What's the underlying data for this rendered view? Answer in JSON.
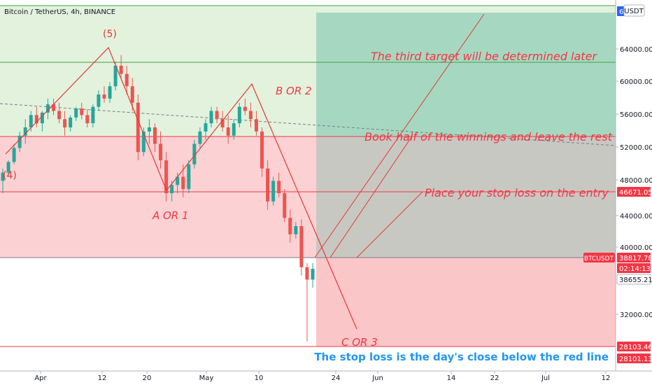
{
  "header": {
    "title": "Bitcoin / TetherUS, 4h, BINANCE",
    "currency_badge": "USDT"
  },
  "chart_data": {
    "type": "candlestick",
    "symbol": "Bitcoin / TetherUS",
    "interval": "4h",
    "exchange": "BINANCE",
    "x_ticks": [
      "Apr",
      "12",
      "20",
      "May",
      "10",
      "24",
      "Jun",
      "14",
      "22",
      "Jul",
      "12"
    ],
    "y_ticks": [
      "64000.00",
      "60000.00",
      "56000.00",
      "52000.00",
      "48000.00",
      "44000.00",
      "40000.00",
      "32000.00"
    ],
    "price_labels": [
      {
        "id": "top",
        "value": "6",
        "bg": "#2962ff",
        "fg": "#ffffff"
      },
      {
        "id": "stop-entry",
        "value": "46671.05",
        "bg": "#f23645",
        "fg": "#ffffff"
      },
      {
        "id": "symbol",
        "value": "BTCUSDT",
        "bg": "#f23645",
        "fg": "#ffffff"
      },
      {
        "id": "last",
        "value": "38817.78",
        "bg": "#f23645",
        "fg": "#ffffff"
      },
      {
        "id": "countdown",
        "value": "02:14:13",
        "bg": "#f23645",
        "fg": "#ffffff"
      },
      {
        "id": "cursor",
        "value": "38655.21",
        "bg": "#ffffff",
        "fg": "#131722"
      },
      {
        "id": "red-line",
        "value": "28103.46",
        "bg": "#f23645",
        "fg": "#ffffff"
      },
      {
        "id": "low-line",
        "value": "28101.13",
        "bg": "#f23645",
        "fg": "#ffffff"
      }
    ],
    "wave_labels": [
      "(5)",
      "(4)",
      "A OR 1",
      "B OR 2",
      "C OR 3"
    ],
    "annotations": [
      "The third target will be determined later",
      "Book half of the winnings and leave the rest",
      "Place your stop loss on the entry",
      "The stop loss is the day's close below the red line"
    ],
    "candles_approx": [
      [
        49500,
        51000,
        48000,
        50500
      ],
      [
        50500,
        52000,
        50000,
        51800
      ],
      [
        51800,
        54000,
        51500,
        53500
      ],
      [
        53500,
        55500,
        53000,
        55000
      ],
      [
        55000,
        57000,
        54000,
        56000
      ],
      [
        56000,
        58000,
        55500,
        57500
      ],
      [
        57500,
        58500,
        56000,
        56500
      ],
      [
        56500,
        58000,
        55500,
        57800
      ],
      [
        57800,
        59500,
        57000,
        58800
      ],
      [
        58800,
        59500,
        57500,
        58000
      ],
      [
        58000,
        59000,
        56500,
        57000
      ],
      [
        57000,
        58000,
        55000,
        56000
      ],
      [
        56000,
        57500,
        55500,
        57200
      ],
      [
        57200,
        58500,
        56800,
        58300
      ],
      [
        58300,
        59000,
        57000,
        57500
      ],
      [
        57500,
        58200,
        56000,
        56500
      ],
      [
        56500,
        58800,
        56000,
        58500
      ],
      [
        58500,
        60500,
        58000,
        60000
      ],
      [
        60000,
        61000,
        59000,
        59500
      ],
      [
        59500,
        61500,
        59000,
        61000
      ],
      [
        61000,
        64000,
        60500,
        63500
      ],
      [
        63500,
        64800,
        62000,
        62500
      ],
      [
        62500,
        63500,
        60000,
        61000
      ],
      [
        61000,
        62000,
        58000,
        59000
      ],
      [
        59000,
        60000,
        52000,
        53000
      ],
      [
        53000,
        56000,
        52500,
        55500
      ],
      [
        55500,
        57000,
        54000,
        56000
      ],
      [
        56000,
        56500,
        53000,
        54000
      ],
      [
        54000,
        55500,
        51000,
        52000
      ],
      [
        52000,
        53000,
        47000,
        48000
      ],
      [
        48000,
        49500,
        47000,
        49000
      ],
      [
        49000,
        50500,
        48000,
        50000
      ],
      [
        50000,
        51500,
        47500,
        48500
      ],
      [
        48500,
        52000,
        48000,
        51500
      ],
      [
        51500,
        54500,
        51000,
        54000
      ],
      [
        54000,
        56000,
        53500,
        55500
      ],
      [
        55500,
        57000,
        54500,
        56500
      ],
      [
        56500,
        58500,
        56000,
        58000
      ],
      [
        58000,
        58500,
        56500,
        57000
      ],
      [
        57000,
        58000,
        55500,
        56000
      ],
      [
        56000,
        57500,
        54000,
        55000
      ],
      [
        55000,
        57000,
        54500,
        56500
      ],
      [
        56500,
        59000,
        56000,
        58500
      ],
      [
        58500,
        59500,
        57500,
        58000
      ],
      [
        58000,
        59000,
        56000,
        57000
      ],
      [
        57000,
        58000,
        55000,
        55500
      ],
      [
        55500,
        56000,
        50000,
        51000
      ],
      [
        51000,
        52000,
        46000,
        47000
      ],
      [
        47000,
        50000,
        46500,
        49500
      ],
      [
        49500,
        50500,
        47500,
        48000
      ],
      [
        48000,
        48500,
        44500,
        45000
      ],
      [
        45000,
        46000,
        42000,
        43000
      ],
      [
        43000,
        44500,
        42500,
        44000
      ],
      [
        44000,
        44800,
        38000,
        39000
      ],
      [
        39000,
        39500,
        30000,
        37500
      ],
      [
        37500,
        39500,
        36500,
        38800
      ]
    ]
  }
}
